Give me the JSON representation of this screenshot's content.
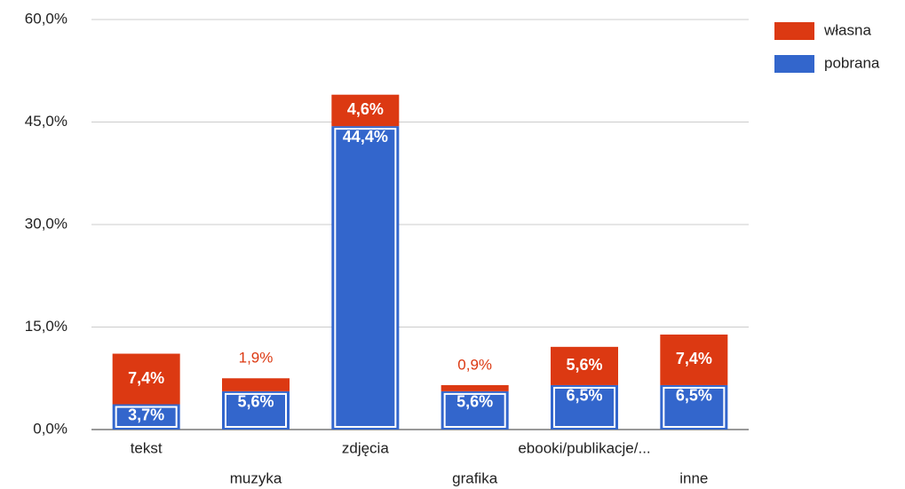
{
  "chart_data": {
    "type": "stacked_bar",
    "categories": [
      "tekst",
      "muzyka",
      "zdjęcia",
      "grafika",
      "ebooki/publikacje/...",
      "inne"
    ],
    "series": [
      {
        "name": "pobrana",
        "color": "#3366cc",
        "values": [
          3.7,
          5.6,
          44.4,
          5.6,
          6.5,
          6.5
        ],
        "value_labels": [
          "3,7%",
          "5,6%",
          "44,4%",
          "5,6%",
          "6,5%",
          "6,5%"
        ]
      },
      {
        "name": "własna",
        "color": "#dc3912",
        "values": [
          7.4,
          1.9,
          4.6,
          0.9,
          5.6,
          7.4
        ],
        "value_labels": [
          "7,4%",
          "1,9%",
          "4,6%",
          "0,9%",
          "5,6%",
          "7,4%"
        ]
      }
    ],
    "ylim": [
      0,
      60
    ],
    "yticks": [
      {
        "value": 0,
        "label": "0,0%"
      },
      {
        "value": 15,
        "label": "15,0%"
      },
      {
        "value": 30,
        "label": "30,0%"
      },
      {
        "value": 45,
        "label": "45,0%"
      },
      {
        "value": 60,
        "label": "60,0%"
      }
    ],
    "grid": true,
    "legend": "right"
  }
}
